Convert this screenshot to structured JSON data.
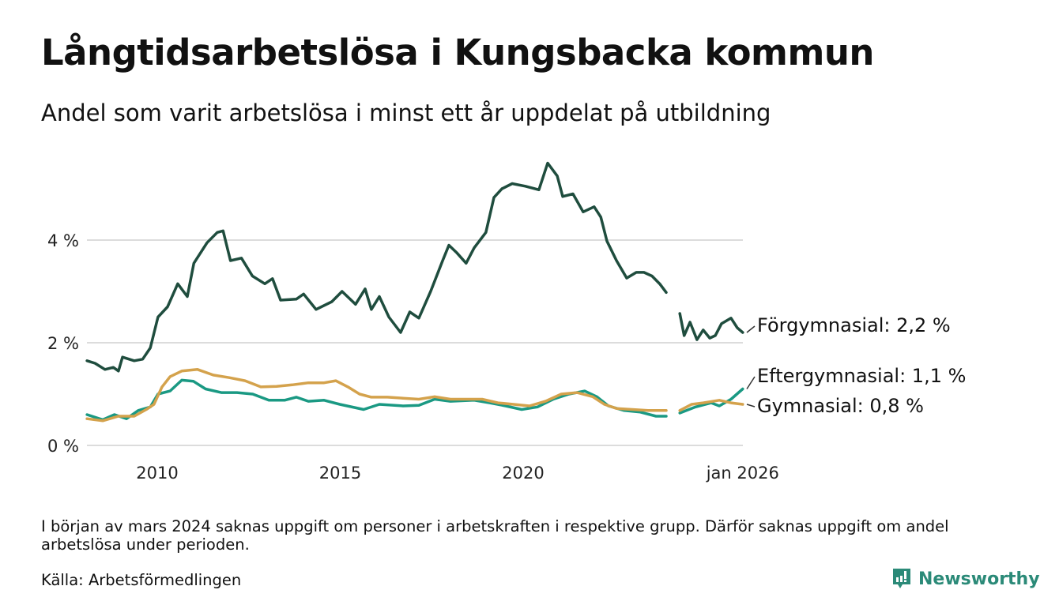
{
  "title": "Långtidsarbetslösa i Kungsbacka kommun",
  "subtitle": "Andel som varit arbetslösa i minst ett år uppdelat på utbildning",
  "note": "I början av mars 2024 saknas uppgift om personer i arbetskraften i respektive grupp. Därför saknas uppgift om andel arbetslösa under perioden.",
  "source": "Källa: Arbetsförmedlingen",
  "brand": "Newsworthy",
  "chart_data": {
    "type": "line",
    "title": "Långtidsarbetslösa i Kungsbacka kommun",
    "xlabel": "",
    "ylabel": "",
    "ylim": [
      0,
      5.6
    ],
    "xlim": [
      2008.08,
      2026.0
    ],
    "yticks": [
      {
        "v": 0,
        "label": "0 %"
      },
      {
        "v": 2,
        "label": "2 %"
      },
      {
        "v": 4,
        "label": "4 %"
      }
    ],
    "xticks": [
      {
        "v": 2010,
        "label": "2010"
      },
      {
        "v": 2015,
        "label": "2015"
      },
      {
        "v": 2020,
        "label": "2020"
      },
      {
        "v": 2026,
        "label": "jan 2026"
      }
    ],
    "grid": true,
    "series": [
      {
        "name": "Förgymnasial",
        "end_label": "Förgymnasial: 2,2 %",
        "color": "#1f4d3e",
        "segments": [
          [
            [
              2008.08,
              1.65
            ],
            [
              2008.3,
              1.6
            ],
            [
              2008.57,
              1.48
            ],
            [
              2008.8,
              1.52
            ],
            [
              2008.94,
              1.45
            ],
            [
              2009.05,
              1.72
            ],
            [
              2009.37,
              1.65
            ],
            [
              2009.6,
              1.68
            ],
            [
              2009.81,
              1.9
            ],
            [
              2010.02,
              2.5
            ],
            [
              2010.28,
              2.7
            ],
            [
              2010.56,
              3.15
            ],
            [
              2010.82,
              2.9
            ],
            [
              2011.0,
              3.55
            ],
            [
              2011.36,
              3.95
            ],
            [
              2011.64,
              4.15
            ],
            [
              2011.8,
              4.18
            ],
            [
              2012.0,
              3.6
            ],
            [
              2012.3,
              3.65
            ],
            [
              2012.6,
              3.3
            ],
            [
              2012.94,
              3.15
            ],
            [
              2013.15,
              3.25
            ],
            [
              2013.37,
              2.83
            ],
            [
              2013.8,
              2.85
            ],
            [
              2014.0,
              2.95
            ],
            [
              2014.34,
              2.65
            ],
            [
              2014.77,
              2.8
            ],
            [
              2015.05,
              3.0
            ],
            [
              2015.42,
              2.75
            ],
            [
              2015.68,
              3.05
            ],
            [
              2015.85,
              2.65
            ],
            [
              2016.07,
              2.9
            ],
            [
              2016.33,
              2.5
            ],
            [
              2016.65,
              2.2
            ],
            [
              2016.9,
              2.6
            ],
            [
              2017.15,
              2.48
            ],
            [
              2017.47,
              3.0
            ],
            [
              2017.8,
              3.6
            ],
            [
              2017.97,
              3.9
            ],
            [
              2018.19,
              3.75
            ],
            [
              2018.44,
              3.55
            ],
            [
              2018.66,
              3.85
            ],
            [
              2018.98,
              4.15
            ],
            [
              2019.2,
              4.83
            ],
            [
              2019.42,
              5.0
            ],
            [
              2019.7,
              5.1
            ],
            [
              2020.06,
              5.05
            ],
            [
              2020.43,
              4.98
            ],
            [
              2020.67,
              5.5
            ],
            [
              2020.93,
              5.25
            ],
            [
              2021.08,
              4.85
            ],
            [
              2021.36,
              4.9
            ],
            [
              2021.64,
              4.55
            ],
            [
              2021.94,
              4.65
            ],
            [
              2022.12,
              4.45
            ],
            [
              2022.29,
              3.98
            ],
            [
              2022.55,
              3.6
            ],
            [
              2022.83,
              3.26
            ],
            [
              2023.09,
              3.37
            ],
            [
              2023.3,
              3.37
            ],
            [
              2023.52,
              3.3
            ],
            [
              2023.74,
              3.14
            ],
            [
              2023.91,
              2.98
            ]
          ],
          [
            [
              2024.28,
              2.57
            ],
            [
              2024.4,
              2.14
            ],
            [
              2024.56,
              2.4
            ],
            [
              2024.75,
              2.06
            ],
            [
              2024.92,
              2.25
            ],
            [
              2025.1,
              2.09
            ],
            [
              2025.25,
              2.14
            ],
            [
              2025.42,
              2.37
            ],
            [
              2025.68,
              2.48
            ],
            [
              2025.85,
              2.29
            ],
            [
              2026.0,
              2.2
            ]
          ]
        ]
      },
      {
        "name": "Eftergymnasial",
        "end_label": "Eftergymnasial: 1,1 %",
        "color": "#1a9983",
        "segments": [
          [
            [
              2008.08,
              0.6
            ],
            [
              2008.51,
              0.5
            ],
            [
              2008.83,
              0.6
            ],
            [
              2009.16,
              0.52
            ],
            [
              2009.48,
              0.68
            ],
            [
              2009.81,
              0.75
            ],
            [
              2010.02,
              1.0
            ],
            [
              2010.35,
              1.06
            ],
            [
              2010.67,
              1.27
            ],
            [
              2010.99,
              1.25
            ],
            [
              2011.32,
              1.1
            ],
            [
              2011.75,
              1.03
            ],
            [
              2012.18,
              1.03
            ],
            [
              2012.61,
              1.0
            ],
            [
              2013.05,
              0.88
            ],
            [
              2013.48,
              0.88
            ],
            [
              2013.8,
              0.94
            ],
            [
              2014.13,
              0.86
            ],
            [
              2014.56,
              0.88
            ],
            [
              2014.99,
              0.8
            ],
            [
              2015.64,
              0.7
            ],
            [
              2016.07,
              0.8
            ],
            [
              2016.72,
              0.77
            ],
            [
              2017.15,
              0.78
            ],
            [
              2017.58,
              0.9
            ],
            [
              2018.01,
              0.86
            ],
            [
              2018.66,
              0.88
            ],
            [
              2019.09,
              0.83
            ],
            [
              2019.52,
              0.77
            ],
            [
              2019.96,
              0.7
            ],
            [
              2020.39,
              0.75
            ],
            [
              2020.82,
              0.9
            ],
            [
              2021.25,
              1.0
            ],
            [
              2021.68,
              1.06
            ],
            [
              2022.01,
              0.95
            ],
            [
              2022.33,
              0.77
            ],
            [
              2022.76,
              0.68
            ],
            [
              2023.2,
              0.65
            ],
            [
              2023.63,
              0.57
            ],
            [
              2023.91,
              0.57
            ]
          ],
          [
            [
              2024.28,
              0.63
            ],
            [
              2024.71,
              0.75
            ],
            [
              2025.14,
              0.83
            ],
            [
              2025.36,
              0.77
            ],
            [
              2025.68,
              0.9
            ],
            [
              2026.0,
              1.1
            ]
          ]
        ]
      },
      {
        "name": "Gymnasial",
        "end_label": "Gymnasial: 0,8 %",
        "color": "#d4a24c",
        "segments": [
          [
            [
              2008.08,
              0.52
            ],
            [
              2008.51,
              0.48
            ],
            [
              2008.94,
              0.57
            ],
            [
              2009.37,
              0.57
            ],
            [
              2009.7,
              0.7
            ],
            [
              2009.91,
              0.8
            ],
            [
              2010.13,
              1.14
            ],
            [
              2010.35,
              1.34
            ],
            [
              2010.67,
              1.45
            ],
            [
              2011.1,
              1.48
            ],
            [
              2011.53,
              1.37
            ],
            [
              2011.97,
              1.32
            ],
            [
              2012.4,
              1.26
            ],
            [
              2012.83,
              1.14
            ],
            [
              2013.26,
              1.15
            ],
            [
              2013.69,
              1.18
            ],
            [
              2014.13,
              1.22
            ],
            [
              2014.56,
              1.22
            ],
            [
              2014.88,
              1.26
            ],
            [
              2015.21,
              1.14
            ],
            [
              2015.53,
              1.0
            ],
            [
              2015.85,
              0.94
            ],
            [
              2016.29,
              0.94
            ],
            [
              2016.72,
              0.92
            ],
            [
              2017.15,
              0.9
            ],
            [
              2017.58,
              0.95
            ],
            [
              2018.01,
              0.9
            ],
            [
              2018.44,
              0.9
            ],
            [
              2018.88,
              0.9
            ],
            [
              2019.31,
              0.83
            ],
            [
              2019.74,
              0.8
            ],
            [
              2020.17,
              0.77
            ],
            [
              2020.61,
              0.86
            ],
            [
              2021.04,
              1.0
            ],
            [
              2021.47,
              1.03
            ],
            [
              2021.9,
              0.95
            ],
            [
              2022.22,
              0.8
            ],
            [
              2022.55,
              0.72
            ],
            [
              2022.98,
              0.7
            ],
            [
              2023.41,
              0.68
            ],
            [
              2023.91,
              0.68
            ]
          ],
          [
            [
              2024.28,
              0.68
            ],
            [
              2024.6,
              0.8
            ],
            [
              2024.92,
              0.83
            ],
            [
              2025.36,
              0.88
            ],
            [
              2025.68,
              0.83
            ],
            [
              2026.0,
              0.8
            ]
          ]
        ]
      }
    ]
  }
}
